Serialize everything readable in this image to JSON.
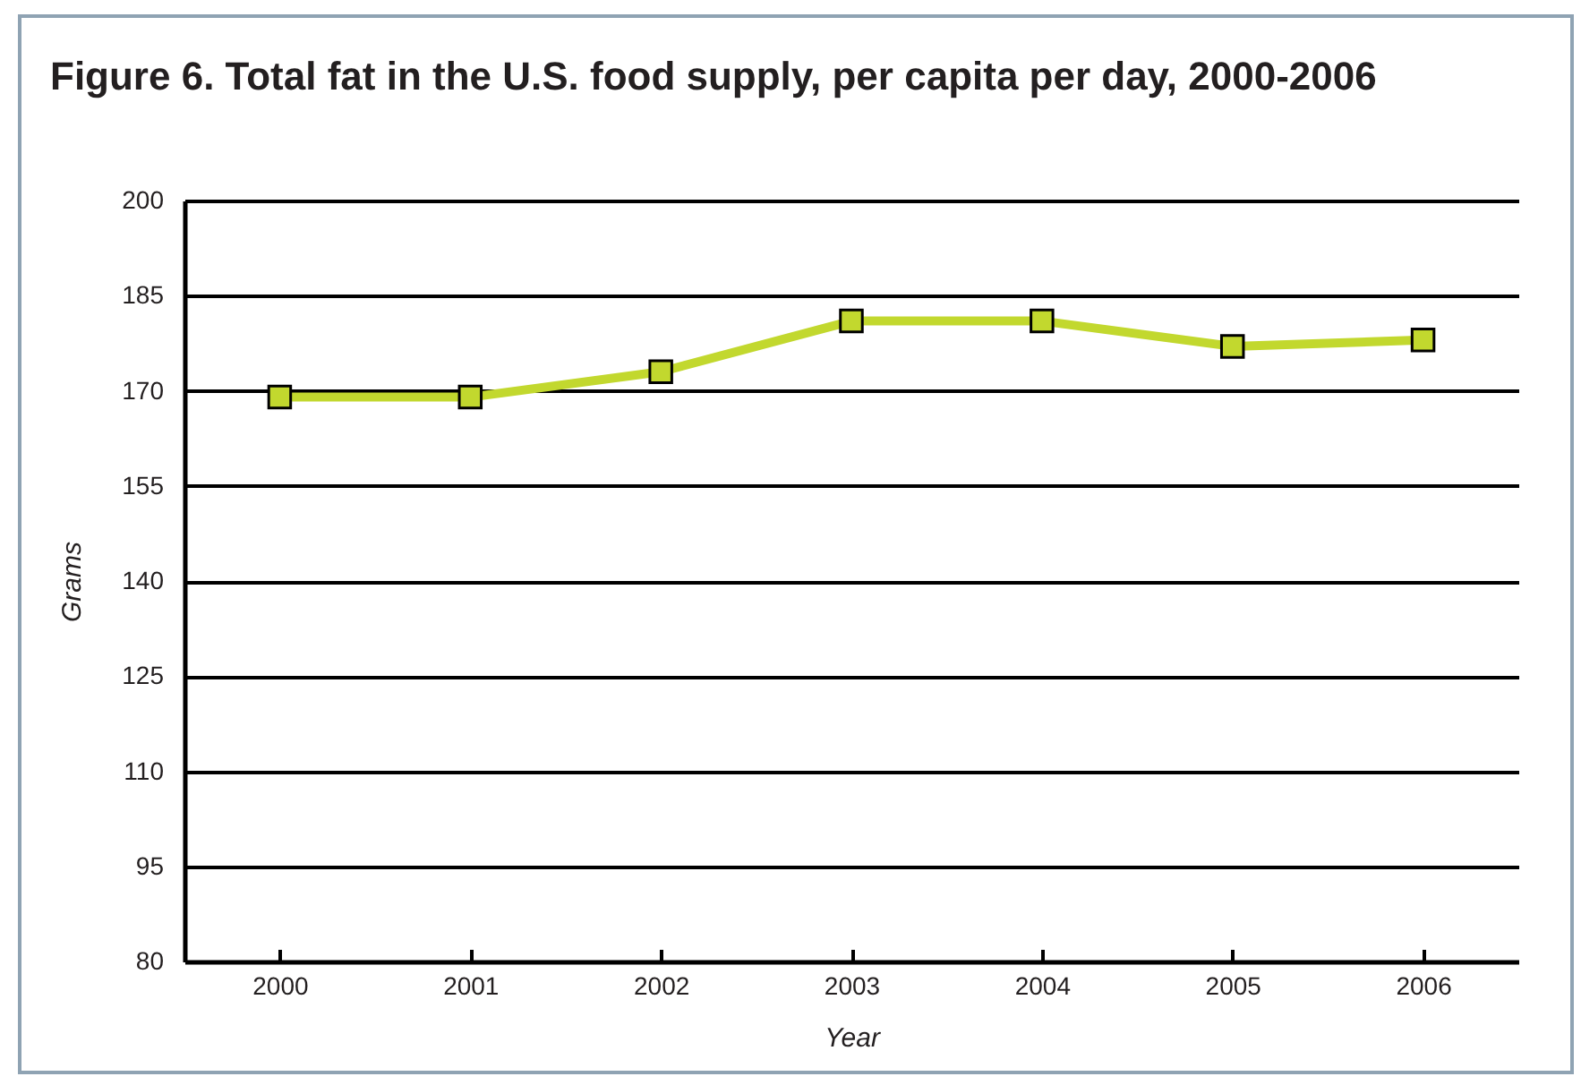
{
  "chart_data": {
    "type": "line",
    "title": "Figure 6. Total fat in the U.S. food supply, per capita per day, 2000-2006",
    "xlabel": "Year",
    "ylabel": "Grams",
    "categories": [
      "2000",
      "2001",
      "2002",
      "2003",
      "2004",
      "2005",
      "2006"
    ],
    "series": [
      {
        "color": "#c2d82e",
        "values": [
          169,
          169,
          173,
          181,
          181,
          177,
          178
        ]
      }
    ],
    "ylim": [
      80,
      200
    ],
    "yticks": [
      80,
      95,
      110,
      125,
      140,
      155,
      170,
      185,
      200
    ],
    "grid": "y",
    "marker": "square"
  }
}
